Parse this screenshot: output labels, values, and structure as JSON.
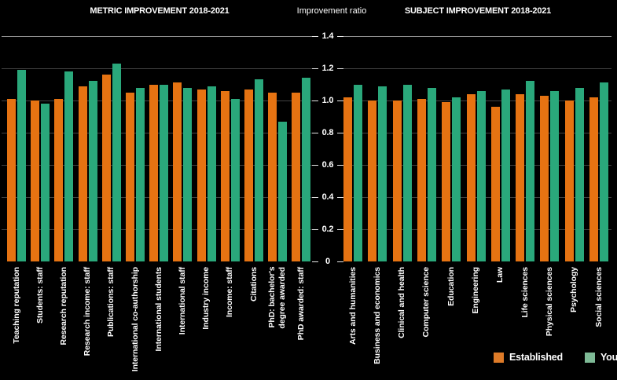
{
  "page": {
    "background": "#000000",
    "text_color": "#ffffff"
  },
  "axis": {
    "title": "Improvement ratio",
    "ticks": [
      {
        "value": 0,
        "label": "0"
      },
      {
        "value": 0.2,
        "label": "0.2"
      },
      {
        "value": 0.4,
        "label": "0.4"
      },
      {
        "value": 0.6,
        "label": "0.6"
      },
      {
        "value": 0.8,
        "label": "0.8"
      },
      {
        "value": 1.0,
        "label": "1.0"
      },
      {
        "value": 1.2,
        "label": "1.2"
      },
      {
        "value": 1.4,
        "label": "1.4"
      }
    ]
  },
  "legend": {
    "items": [
      {
        "label": "Established",
        "swatch": "#de7b28"
      },
      {
        "label": "Young",
        "swatch": "#7eba96"
      }
    ]
  },
  "colors": {
    "established": "#e67312",
    "young": "#2aa87b",
    "grid": "#424242",
    "grid_top": "#8f8f8f"
  },
  "chart_data": [
    {
      "type": "bar",
      "title": "METRIC IMPROVEMENT 2018-2021",
      "ylabel": "Improvement ratio",
      "ylim": [
        0,
        1.4
      ],
      "yticks": [
        0,
        0.2,
        0.4,
        0.6,
        0.8,
        1.0,
        1.2,
        1.4
      ],
      "grid": true,
      "legend_position": "bottom-right",
      "categories": [
        "Teaching reputation",
        "Students: staff",
        "Research reputation",
        "Research income: staff",
        "Publications: staff",
        "International co-authorship",
        "International students",
        "International staff",
        "Industry income",
        "Income: staff",
        "Citations",
        "PhD: bachelor's\ndegree awarded",
        "PhD awarded: staff"
      ],
      "series": [
        {
          "name": "Established",
          "color": "#e67312",
          "values": [
            1.01,
            1.0,
            1.01,
            1.09,
            1.16,
            1.05,
            1.1,
            1.11,
            1.07,
            1.06,
            1.07,
            1.05,
            1.05
          ]
        },
        {
          "name": "Young",
          "color": "#2aa87b",
          "values": [
            1.19,
            0.98,
            1.18,
            1.12,
            1.23,
            1.08,
            1.1,
            1.08,
            1.09,
            1.01,
            1.13,
            0.87,
            1.14
          ]
        }
      ]
    },
    {
      "type": "bar",
      "title": "SUBJECT IMPROVEMENT 2018-2021",
      "ylabel": "Improvement ratio",
      "ylim": [
        0,
        1.4
      ],
      "yticks": [
        0,
        0.2,
        0.4,
        0.6,
        0.8,
        1.0,
        1.2,
        1.4
      ],
      "grid": true,
      "categories": [
        "Arts and humanities",
        "Business and economics",
        "Clinical and health",
        "Computer science",
        "Education",
        "Engineering",
        "Law",
        "Life sciences",
        "Physical sciences",
        "Psychology",
        "Social sciences"
      ],
      "series": [
        {
          "name": "Established",
          "color": "#e67312",
          "values": [
            1.02,
            1.0,
            1.0,
            1.01,
            0.99,
            1.04,
            0.96,
            1.04,
            1.03,
            1.0,
            1.02
          ]
        },
        {
          "name": "Young",
          "color": "#2aa87b",
          "values": [
            1.1,
            1.09,
            1.1,
            1.08,
            1.02,
            1.06,
            1.07,
            1.12,
            1.06,
            1.08,
            1.11
          ]
        }
      ]
    }
  ]
}
